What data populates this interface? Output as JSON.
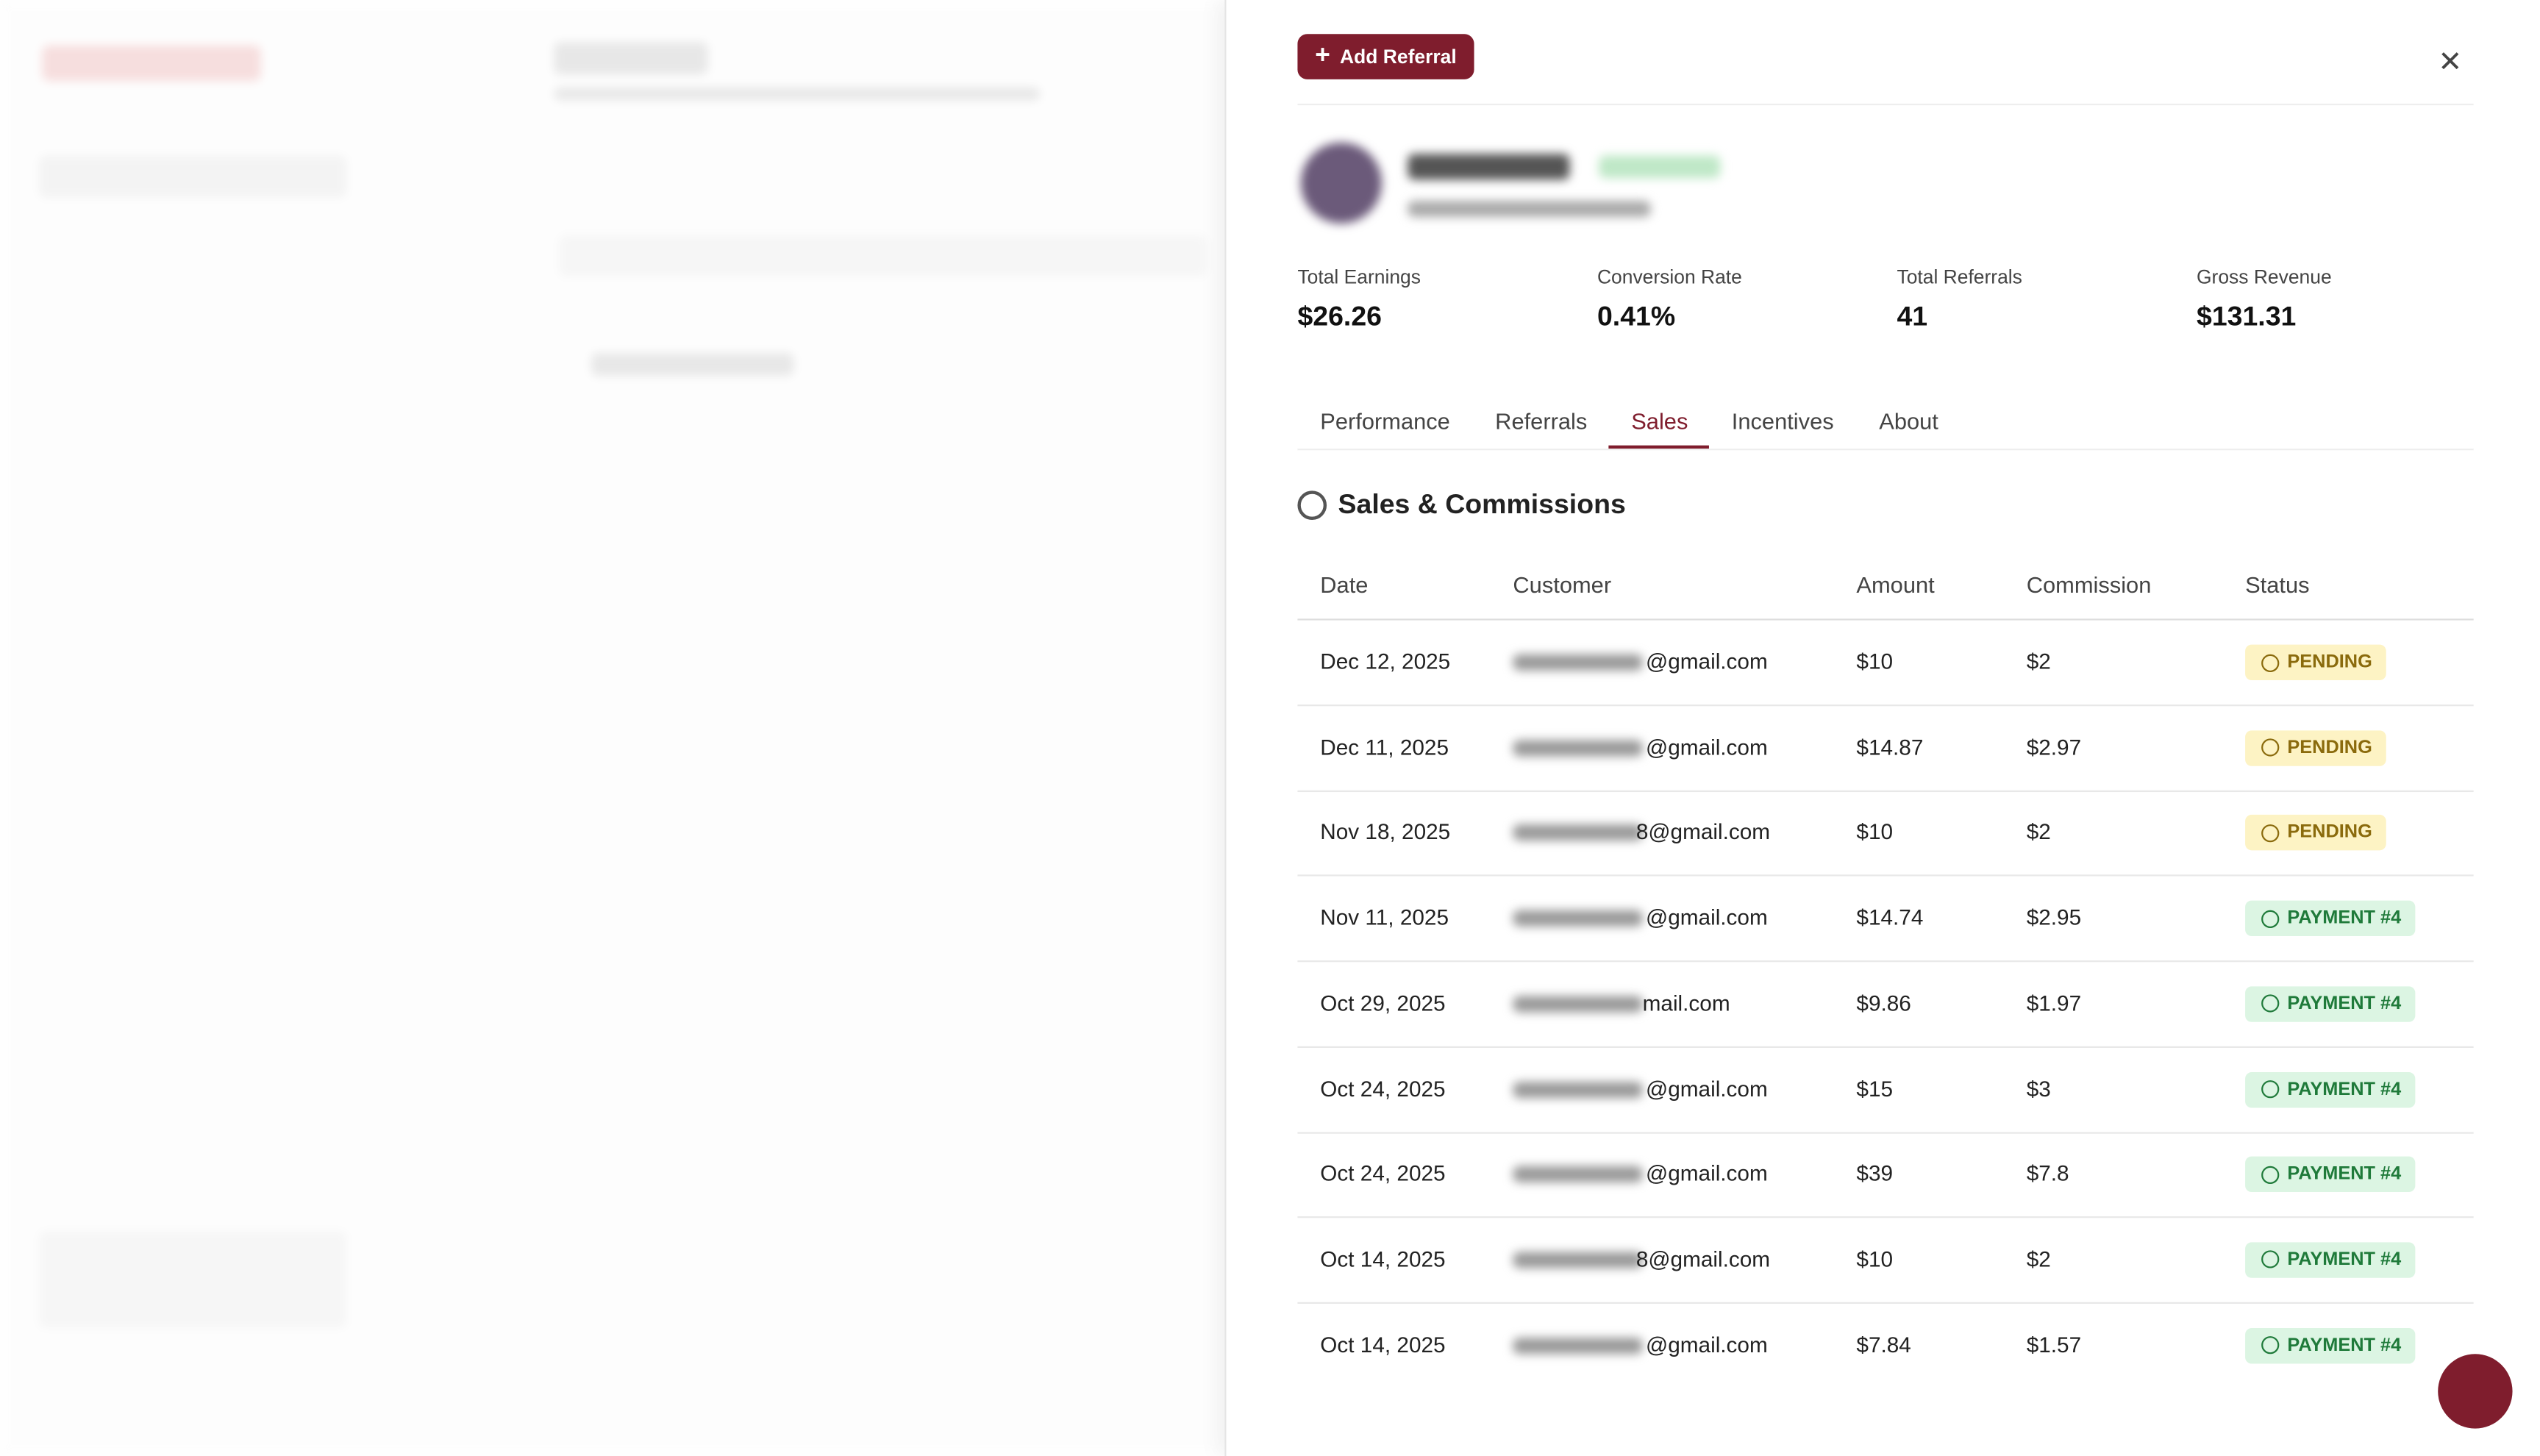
{
  "header": {
    "button": "Add Referral"
  },
  "stats": [
    {
      "label": "Total Earnings",
      "value": "$26.26"
    },
    {
      "label": "Conversion Rate",
      "value": "0.41%"
    },
    {
      "label": "Total Referrals",
      "value": "41"
    },
    {
      "label": "Gross Revenue",
      "value": "$131.31"
    }
  ],
  "tabs": {
    "items": [
      "Performance",
      "Referrals",
      "Sales",
      "Incentives",
      "About"
    ],
    "active": 2
  },
  "section": {
    "title": "Sales & Commissions"
  },
  "table": {
    "columns": [
      "Date",
      "Customer",
      "Amount",
      "Commission",
      "Status"
    ],
    "rows": [
      [
        "Dec 12, 2025",
        "@gmail.com",
        "$10",
        "$2",
        "PENDING"
      ],
      [
        "Dec 11, 2025",
        "@gmail.com",
        "$14.87",
        "$2.97",
        "PENDING"
      ],
      [
        "Nov 18, 2025",
        "8@gmail.com",
        "$10",
        "$2",
        "PENDING"
      ],
      [
        "Nov 11, 2025",
        "@gmail.com",
        "$14.74",
        "$2.95",
        "PAYMENT #4"
      ],
      [
        "Oct 29, 2025",
        "mail.com",
        "$9.86",
        "$1.97",
        "PAYMENT #4"
      ],
      [
        "Oct 24, 2025",
        "@gmail.com",
        "$15",
        "$3",
        "PAYMENT #4"
      ],
      [
        "Oct 24, 2025",
        "@gmail.com",
        "$39",
        "$7.8",
        "PAYMENT #4"
      ],
      [
        "Oct 14, 2025",
        "8@gmail.com",
        "$10",
        "$2",
        "PAYMENT #4"
      ],
      [
        "Oct 14, 2025",
        "@gmail.com",
        "$7.84",
        "$1.57",
        "PAYMENT #4"
      ]
    ]
  }
}
